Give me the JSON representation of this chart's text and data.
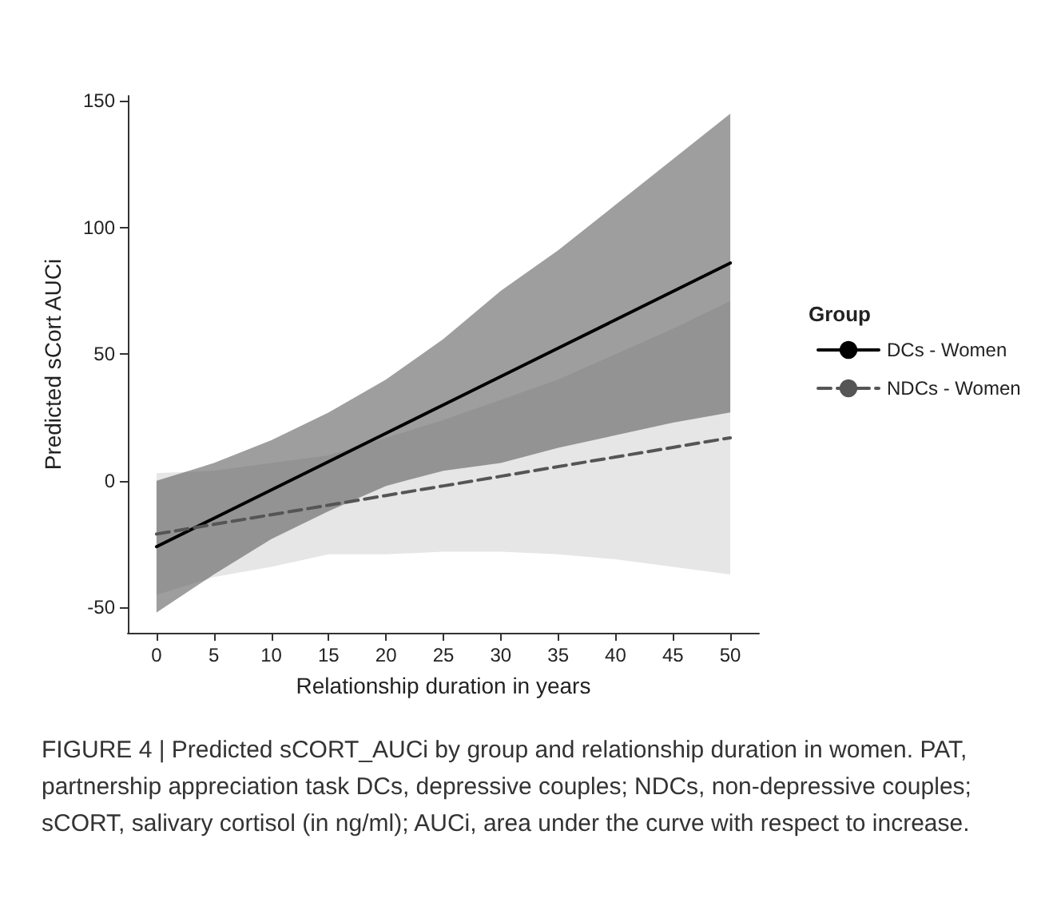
{
  "chart_data": {
    "type": "line",
    "xlabel": "Relationship duration in years",
    "ylabel": "Predicted sCort AUCi",
    "legend_title": "Group",
    "legend": "right",
    "grid": false,
    "x": [
      0,
      5,
      10,
      15,
      20,
      25,
      30,
      35,
      40,
      45,
      50
    ],
    "xlim": [
      -2.5,
      52.5
    ],
    "xticks": [
      0,
      5,
      10,
      15,
      20,
      25,
      30,
      35,
      40,
      45,
      50
    ],
    "ylim": [
      -60,
      152
    ],
    "yticks": [
      -50,
      0,
      50,
      100,
      150
    ],
    "series": [
      {
        "name": "DCs - Women",
        "color": "#000000",
        "line_style": "solid",
        "values": [
          -26,
          -14.8,
          -3.6,
          7.6,
          18.8,
          30,
          41.2,
          52.4,
          63.6,
          74.8,
          86
        ],
        "lower": [
          -52,
          -37,
          -23,
          -12,
          -2,
          4,
          7,
          13,
          18,
          23,
          27
        ],
        "upper": [
          0,
          7,
          16,
          27,
          40,
          56,
          75,
          91,
          109,
          127,
          145
        ]
      },
      {
        "name": "NDCs - Women",
        "color": "#555555",
        "line_style": "dashed",
        "values": [
          -21,
          -17.2,
          -13.4,
          -9.6,
          -5.8,
          -2,
          1.8,
          5.6,
          9.4,
          13.2,
          17
        ],
        "lower": [
          -45,
          -38,
          -34,
          -29,
          -29,
          -28,
          -28,
          -29,
          -31,
          -34,
          -37
        ],
        "upper": [
          3,
          4,
          7,
          10,
          17,
          24,
          32,
          40,
          50,
          60,
          71
        ]
      }
    ],
    "annotations": [
      "FIGURE 4 | Predicted sCORT_AUCi by group and relationship duration in women. PAT, partnership appreciation task DCs, depressive couples; NDCs, non-depressive couples; sCORT, salivary cortisol (in ng/ml); AUCi, area under the curve with respect to increase."
    ]
  }
}
